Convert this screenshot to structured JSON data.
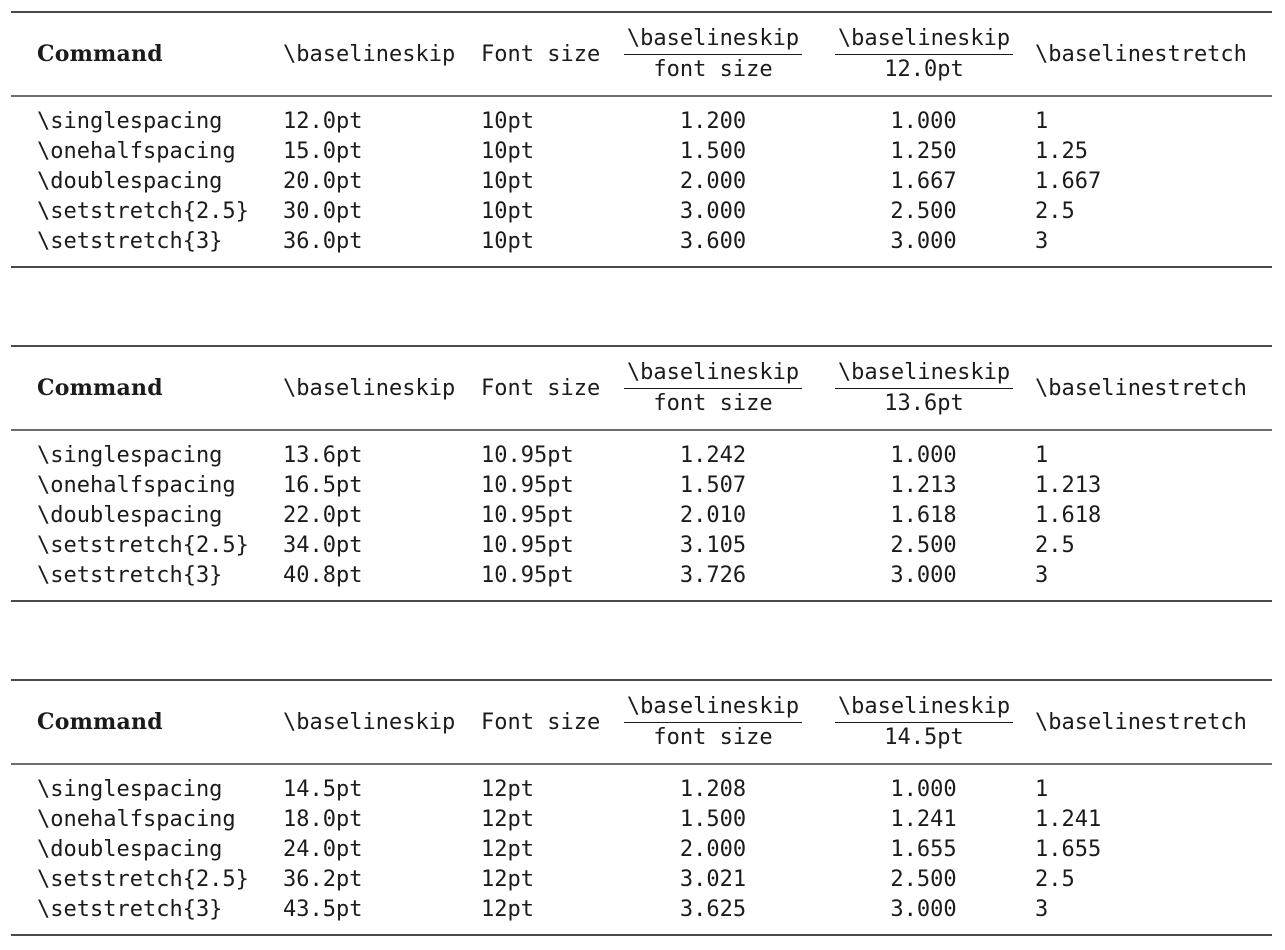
{
  "page": {
    "background": "#ffffff",
    "text_color": "#1b1b1b",
    "heavy_rule_color": "#4a4a4a",
    "light_rule_color": "#6d6d6d"
  },
  "tables": [
    {
      "headers": {
        "command": "Command",
        "baselineskip": "\\baselineskip",
        "font_size": "Font size",
        "ratio_fontsize_num": "\\baselineskip",
        "ratio_fontsize_den": "font size",
        "ratio_fixed_num": "\\baselineskip",
        "ratio_fixed_den": "12.0pt",
        "baselinestretch": "\\baselinestretch"
      },
      "rows": [
        {
          "command": "\\singlespacing",
          "baselineskip": "12.0pt",
          "font_size": "10pt",
          "ratio_fontsize": "1.200",
          "ratio_fixed": "1.000",
          "stretch": "1"
        },
        {
          "command": "\\onehalfspacing",
          "baselineskip": "15.0pt",
          "font_size": "10pt",
          "ratio_fontsize": "1.500",
          "ratio_fixed": "1.250",
          "stretch": "1.25"
        },
        {
          "command": "\\doublespacing",
          "baselineskip": "20.0pt",
          "font_size": "10pt",
          "ratio_fontsize": "2.000",
          "ratio_fixed": "1.667",
          "stretch": "1.667"
        },
        {
          "command": "\\setstretch{2.5}",
          "baselineskip": "30.0pt",
          "font_size": "10pt",
          "ratio_fontsize": "3.000",
          "ratio_fixed": "2.500",
          "stretch": "2.5"
        },
        {
          "command": "\\setstretch{3}",
          "baselineskip": "36.0pt",
          "font_size": "10pt",
          "ratio_fontsize": "3.600",
          "ratio_fixed": "3.000",
          "stretch": "3"
        }
      ]
    },
    {
      "headers": {
        "command": "Command",
        "baselineskip": "\\baselineskip",
        "font_size": "Font size",
        "ratio_fontsize_num": "\\baselineskip",
        "ratio_fontsize_den": "font size",
        "ratio_fixed_num": "\\baselineskip",
        "ratio_fixed_den": "13.6pt",
        "baselinestretch": "\\baselinestretch"
      },
      "rows": [
        {
          "command": "\\singlespacing",
          "baselineskip": "13.6pt",
          "font_size": "10.95pt",
          "ratio_fontsize": "1.242",
          "ratio_fixed": "1.000",
          "stretch": "1"
        },
        {
          "command": "\\onehalfspacing",
          "baselineskip": "16.5pt",
          "font_size": "10.95pt",
          "ratio_fontsize": "1.507",
          "ratio_fixed": "1.213",
          "stretch": "1.213"
        },
        {
          "command": "\\doublespacing",
          "baselineskip": "22.0pt",
          "font_size": "10.95pt",
          "ratio_fontsize": "2.010",
          "ratio_fixed": "1.618",
          "stretch": "1.618"
        },
        {
          "command": "\\setstretch{2.5}",
          "baselineskip": "34.0pt",
          "font_size": "10.95pt",
          "ratio_fontsize": "3.105",
          "ratio_fixed": "2.500",
          "stretch": "2.5"
        },
        {
          "command": "\\setstretch{3}",
          "baselineskip": "40.8pt",
          "font_size": "10.95pt",
          "ratio_fontsize": "3.726",
          "ratio_fixed": "3.000",
          "stretch": "3"
        }
      ]
    },
    {
      "headers": {
        "command": "Command",
        "baselineskip": "\\baselineskip",
        "font_size": "Font size",
        "ratio_fontsize_num": "\\baselineskip",
        "ratio_fontsize_den": "font size",
        "ratio_fixed_num": "\\baselineskip",
        "ratio_fixed_den": "14.5pt",
        "baselinestretch": "\\baselinestretch"
      },
      "rows": [
        {
          "command": "\\singlespacing",
          "baselineskip": "14.5pt",
          "font_size": "12pt",
          "ratio_fontsize": "1.208",
          "ratio_fixed": "1.000",
          "stretch": "1"
        },
        {
          "command": "\\onehalfspacing",
          "baselineskip": "18.0pt",
          "font_size": "12pt",
          "ratio_fontsize": "1.500",
          "ratio_fixed": "1.241",
          "stretch": "1.241"
        },
        {
          "command": "\\doublespacing",
          "baselineskip": "24.0pt",
          "font_size": "12pt",
          "ratio_fontsize": "2.000",
          "ratio_fixed": "1.655",
          "stretch": "1.655"
        },
        {
          "command": "\\setstretch{2.5}",
          "baselineskip": "36.2pt",
          "font_size": "12pt",
          "ratio_fontsize": "3.021",
          "ratio_fixed": "2.500",
          "stretch": "2.5"
        },
        {
          "command": "\\setstretch{3}",
          "baselineskip": "43.5pt",
          "font_size": "12pt",
          "ratio_fontsize": "3.625",
          "ratio_fixed": "3.000",
          "stretch": "3"
        }
      ]
    }
  ]
}
